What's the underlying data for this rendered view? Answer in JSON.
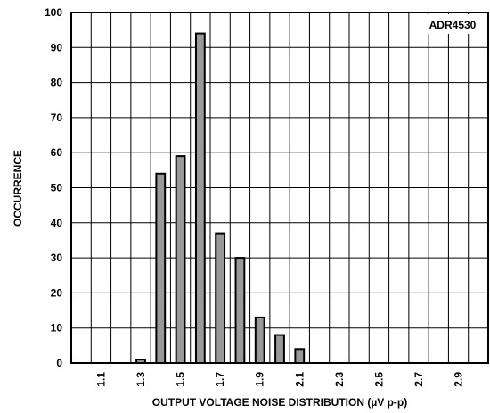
{
  "chart_data": {
    "type": "bar",
    "title": "",
    "xlabel": "OUTPUT VOLTAGE NOISE DISTRIBUTION (µV p-p)",
    "ylabel": "OCCURRENCE",
    "annotation": "ADR4530",
    "ylim": [
      0,
      100
    ],
    "y_ticks": [
      "0",
      "10",
      "20",
      "30",
      "40",
      "50",
      "60",
      "70",
      "80",
      "90",
      "100"
    ],
    "x_tick_labels": [
      "1.1",
      "1.3",
      "1.5",
      "1.7",
      "1.9",
      "2.1",
      "2.3",
      "2.5",
      "2.7",
      "2.9"
    ],
    "categories": [
      "1.0",
      "1.1",
      "1.2",
      "1.3",
      "1.4",
      "1.5",
      "1.6",
      "1.7",
      "1.8",
      "1.9",
      "2.0",
      "2.1",
      "2.2",
      "2.3",
      "2.4",
      "2.5",
      "2.6",
      "2.7",
      "2.8",
      "2.9",
      "3.0"
    ],
    "values": [
      0,
      0,
      0,
      1,
      54,
      59,
      94,
      37,
      30,
      13,
      8,
      4,
      0,
      0,
      0,
      0,
      0,
      0,
      0,
      0,
      0
    ],
    "grid": true,
    "colors": {
      "bar_fill": "#999999",
      "bar_stroke": "#000000",
      "grid": "#000000"
    }
  }
}
